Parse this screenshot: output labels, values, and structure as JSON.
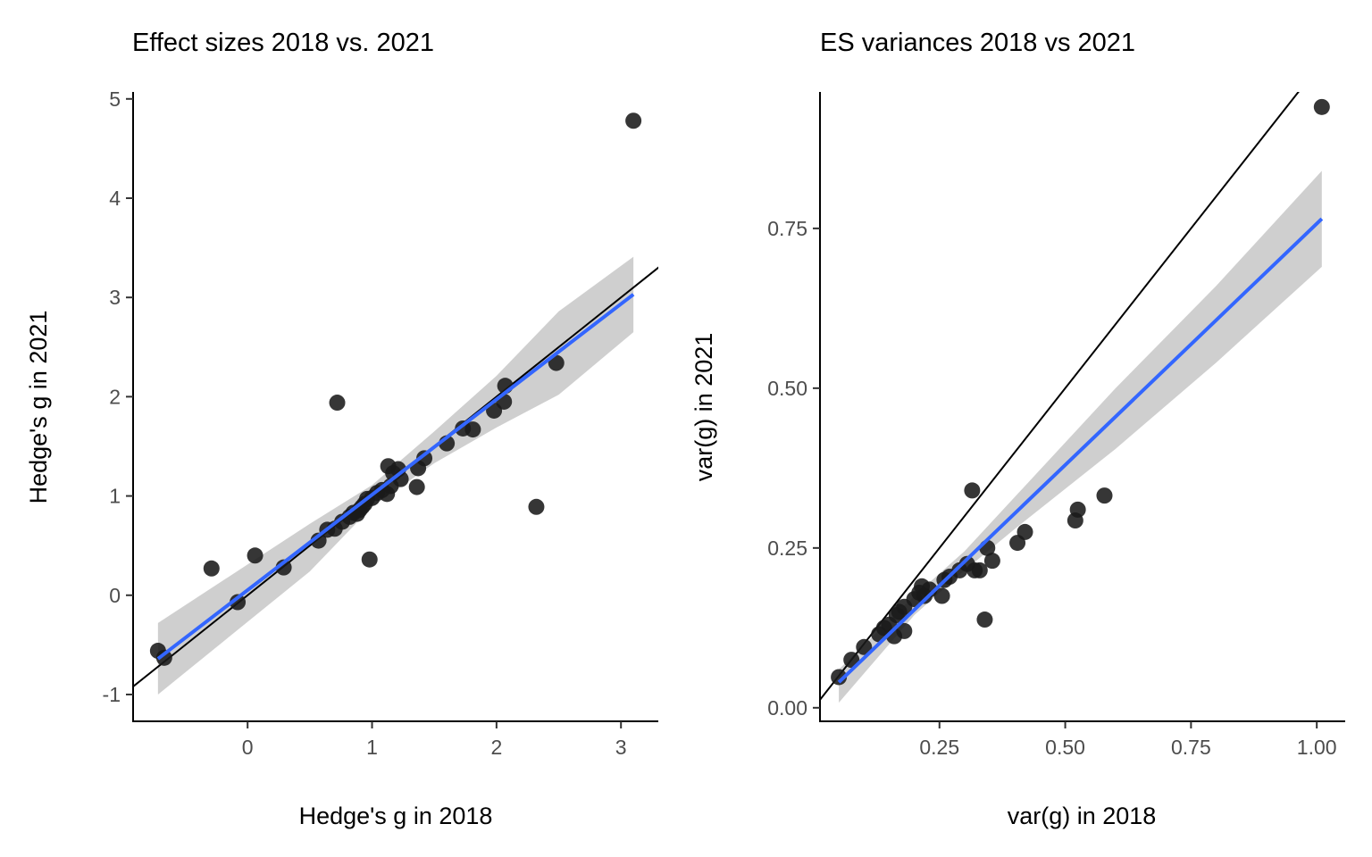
{
  "chart_data": [
    {
      "type": "scatter",
      "title": "Effect sizes 2018 vs. 2021",
      "xlabel": "Hedge's g in 2018",
      "ylabel": "Hedge's g in 2021",
      "xlim": [
        -0.92,
        3.3
      ],
      "ylim": [
        -1.27,
        5.07
      ],
      "xticks": [
        0,
        1,
        2,
        3
      ],
      "xtick_labels": [
        "0",
        "1",
        "2",
        "3"
      ],
      "yticks": [
        -1,
        0,
        1,
        2,
        3,
        4,
        5
      ],
      "ytick_labels": [
        "-1",
        "0",
        "1",
        "2",
        "3",
        "4",
        "5"
      ],
      "grid": false,
      "identity_line": true,
      "points": [
        [
          -0.72,
          -0.56
        ],
        [
          -0.67,
          -0.63
        ],
        [
          -0.29,
          0.27
        ],
        [
          -0.08,
          -0.07
        ],
        [
          0.06,
          0.4
        ],
        [
          0.29,
          0.28
        ],
        [
          0.57,
          0.55
        ],
        [
          0.64,
          0.66
        ],
        [
          0.7,
          0.67
        ],
        [
          0.72,
          1.94
        ],
        [
          0.76,
          0.74
        ],
        [
          0.82,
          0.79
        ],
        [
          0.85,
          0.83
        ],
        [
          0.88,
          0.82
        ],
        [
          0.9,
          0.86
        ],
        [
          0.92,
          0.89
        ],
        [
          0.94,
          0.92
        ],
        [
          0.96,
          0.97
        ],
        [
          0.98,
          0.36
        ],
        [
          1.0,
          0.98
        ],
        [
          1.04,
          1.03
        ],
        [
          1.08,
          1.06
        ],
        [
          1.12,
          1.02
        ],
        [
          1.13,
          1.3
        ],
        [
          1.15,
          1.1
        ],
        [
          1.17,
          1.23
        ],
        [
          1.21,
          1.27
        ],
        [
          1.23,
          1.17
        ],
        [
          1.36,
          1.09
        ],
        [
          1.37,
          1.28
        ],
        [
          1.42,
          1.38
        ],
        [
          1.6,
          1.53
        ],
        [
          1.73,
          1.68
        ],
        [
          1.81,
          1.67
        ],
        [
          1.98,
          1.86
        ],
        [
          2.06,
          1.95
        ],
        [
          2.07,
          2.11
        ],
        [
          2.32,
          0.89
        ],
        [
          2.48,
          2.34
        ],
        [
          3.1,
          4.78
        ]
      ],
      "fit": {
        "x": [
          -0.72,
          3.1
        ],
        "y": [
          -0.64,
          3.03
        ]
      },
      "ci_band": {
        "x": [
          -0.72,
          0.5,
          1.0,
          1.5,
          2.0,
          2.5,
          3.1
        ],
        "upper": [
          -0.28,
          0.72,
          1.11,
          1.65,
          2.21,
          2.86,
          3.41
        ],
        "lower": [
          -1.0,
          0.24,
          0.89,
          1.33,
          1.69,
          2.02,
          2.65
        ]
      },
      "colors": {
        "points": "#1a1a1a",
        "fit": "#3366ff",
        "band": "#bfbfbf",
        "identity": "#000000"
      }
    },
    {
      "type": "scatter",
      "title": "ES variances 2018 vs 2021",
      "xlabel": "var(g) in 2018",
      "ylabel": "var(g) in 2021",
      "xlim": [
        0.0125,
        1.0565
      ],
      "ylim": [
        -0.0212,
        0.9635
      ],
      "xticks": [
        0.25,
        0.5,
        0.75,
        1.0
      ],
      "xtick_labels": [
        "0.25",
        "0.50",
        "0.75",
        "1.00"
      ],
      "yticks": [
        0,
        0.25,
        0.5,
        0.75
      ],
      "ytick_labels": [
        "0.00",
        "0.25",
        "0.50",
        "0.75"
      ],
      "grid": false,
      "identity_line": true,
      "points": [
        [
          0.05,
          0.048
        ],
        [
          0.075,
          0.075
        ],
        [
          0.1,
          0.095
        ],
        [
          0.13,
          0.115
        ],
        [
          0.14,
          0.125
        ],
        [
          0.15,
          0.13
        ],
        [
          0.16,
          0.112
        ],
        [
          0.165,
          0.145
        ],
        [
          0.17,
          0.15
        ],
        [
          0.18,
          0.158
        ],
        [
          0.18,
          0.12
        ],
        [
          0.2,
          0.17
        ],
        [
          0.21,
          0.18
        ],
        [
          0.215,
          0.19
        ],
        [
          0.22,
          0.175
        ],
        [
          0.23,
          0.185
        ],
        [
          0.255,
          0.175
        ],
        [
          0.26,
          0.2
        ],
        [
          0.27,
          0.205
        ],
        [
          0.29,
          0.215
        ],
        [
          0.305,
          0.225
        ],
        [
          0.315,
          0.34
        ],
        [
          0.32,
          0.215
        ],
        [
          0.33,
          0.215
        ],
        [
          0.34,
          0.138
        ],
        [
          0.345,
          0.25
        ],
        [
          0.355,
          0.23
        ],
        [
          0.405,
          0.258
        ],
        [
          0.42,
          0.275
        ],
        [
          0.52,
          0.293
        ],
        [
          0.525,
          0.31
        ],
        [
          0.578,
          0.332
        ],
        [
          1.01,
          0.94
        ]
      ],
      "fit": {
        "x": [
          0.05,
          1.01
        ],
        "y": [
          0.04,
          0.765
        ]
      },
      "ci_band": {
        "x": [
          0.05,
          0.2,
          0.3,
          0.4,
          0.6,
          0.8,
          1.01
        ],
        "upper": [
          0.06,
          0.175,
          0.245,
          0.33,
          0.5,
          0.66,
          0.84
        ],
        "lower": [
          0.008,
          0.145,
          0.215,
          0.28,
          0.405,
          0.54,
          0.69
        ]
      },
      "colors": {
        "points": "#1a1a1a",
        "fit": "#3366ff",
        "band": "#bfbfbf",
        "identity": "#000000"
      }
    }
  ]
}
